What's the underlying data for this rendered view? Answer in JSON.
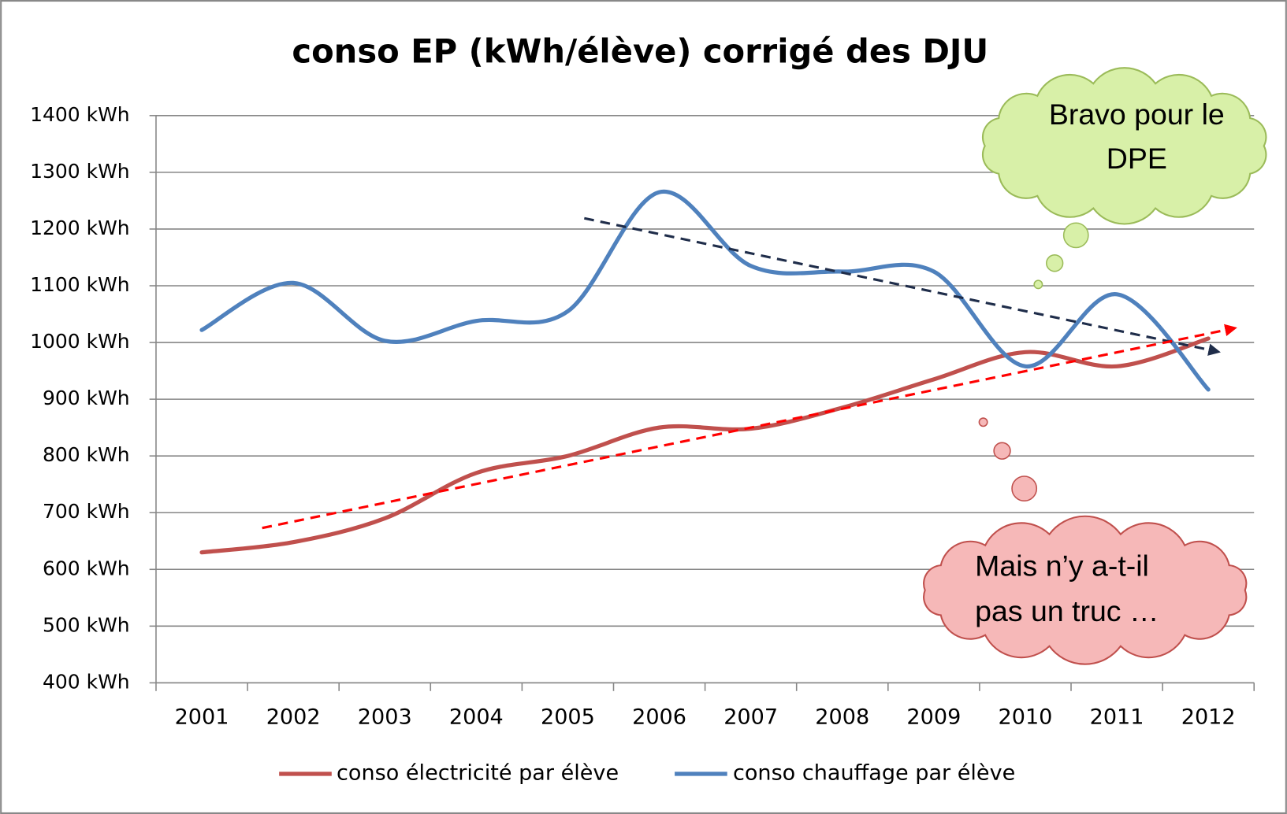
{
  "chart_data": {
    "type": "line",
    "title": "conso EP (kWh/élève) corrigé des DJU",
    "categories": [
      "2001",
      "2002",
      "2003",
      "2004",
      "2005",
      "2006",
      "2007",
      "2008",
      "2009",
      "2010",
      "2011",
      "2012"
    ],
    "series": [
      {
        "name": "conso électricité par élève",
        "color": "#c0504d",
        "values": [
          630,
          648,
          690,
          770,
          800,
          850,
          848,
          885,
          935,
          983,
          958,
          1007
        ]
      },
      {
        "name": "conso chauffage par élève",
        "color": "#4f81bd",
        "values": [
          1022,
          1105,
          1003,
          1038,
          1055,
          1265,
          1135,
          1125,
          1125,
          958,
          1085,
          917
        ]
      }
    ],
    "trendlines": [
      {
        "color": "#1f2d4a",
        "x": [
          4.18,
          11.07
        ],
        "values": [
          1219,
          985
        ]
      },
      {
        "color": "#ff0000",
        "x": [
          0.66,
          11.25
        ],
        "values": [
          673,
          1024
        ]
      }
    ],
    "ylim": [
      400,
      1400
    ],
    "yticks": [
      {
        "value": 400,
        "label": "400 kWh"
      },
      {
        "value": 500,
        "label": "500 kWh"
      },
      {
        "value": 600,
        "label": "600 kWh"
      },
      {
        "value": 700,
        "label": "700 kWh"
      },
      {
        "value": 800,
        "label": "800 kWh"
      },
      {
        "value": 900,
        "label": "900 kWh"
      },
      {
        "value": 1000,
        "label": "1000 kWh"
      },
      {
        "value": 1100,
        "label": "1100 kWh"
      },
      {
        "value": 1200,
        "label": "1200 kWh"
      },
      {
        "value": 1300,
        "label": "1300 kWh"
      },
      {
        "value": 1400,
        "label": "1400 kWh"
      }
    ],
    "grid": true,
    "legend": "bottom",
    "annotations": [
      {
        "lines": [
          "Bravo pour le",
          "DPE"
        ],
        "color": "#d8f0a8"
      },
      {
        "lines": [
          "Mais n’y a-t-il",
          "pas un truc …"
        ],
        "color": "#f6b8b8"
      }
    ]
  }
}
